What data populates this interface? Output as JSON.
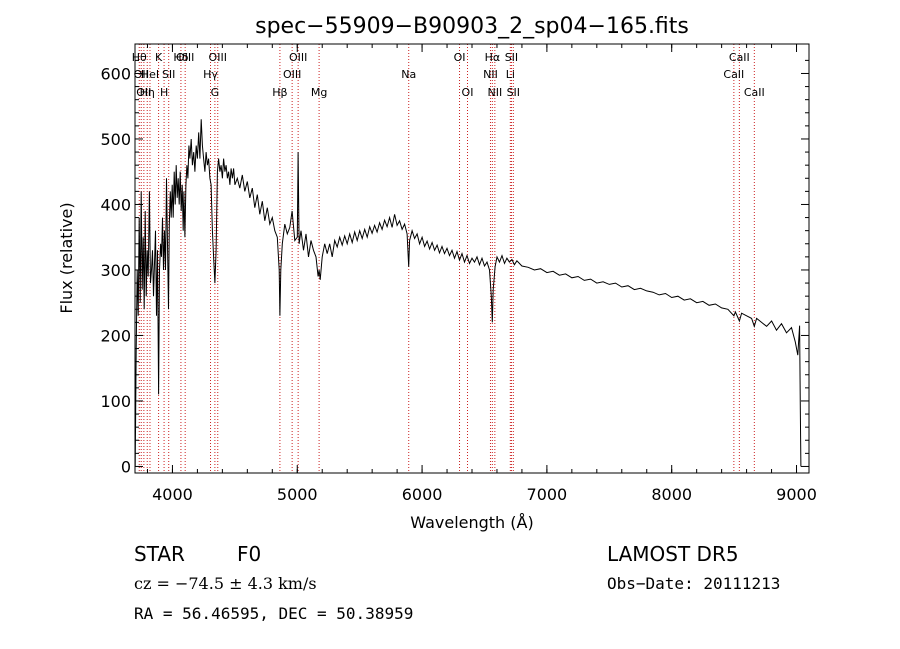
{
  "chart_data": {
    "type": "line",
    "title": "spec−55909−B90903_2_sp04−165.fits",
    "xlabel": "Wavelength (Å)",
    "ylabel": "Flux (relative)",
    "xlim": [
      3700,
      9100
    ],
    "ylim": [
      -10,
      645
    ],
    "xticks": [
      4000,
      5000,
      6000,
      7000,
      8000,
      9000
    ],
    "yticks": [
      0,
      100,
      200,
      300,
      400,
      500,
      600
    ],
    "grid": false,
    "line_color": "#000000",
    "marker_color": "#cc2222",
    "series": [
      {
        "points": [
          [
            3702,
            0
          ],
          [
            3710,
            180
          ],
          [
            3718,
            300
          ],
          [
            3726,
            230
          ],
          [
            3734,
            380
          ],
          [
            3742,
            250
          ],
          [
            3750,
            420
          ],
          [
            3758,
            270
          ],
          [
            3766,
            350
          ],
          [
            3774,
            240
          ],
          [
            3782,
            390
          ],
          [
            3790,
            260
          ],
          [
            3798,
            330
          ],
          [
            3806,
            290
          ],
          [
            3815,
            420
          ],
          [
            3824,
            280
          ],
          [
            3832,
            300
          ],
          [
            3840,
            330
          ],
          [
            3848,
            260
          ],
          [
            3856,
            310
          ],
          [
            3864,
            360
          ],
          [
            3872,
            230
          ],
          [
            3880,
            330
          ],
          [
            3889,
            110
          ],
          [
            3896,
            300
          ],
          [
            3905,
            340
          ],
          [
            3912,
            320
          ],
          [
            3920,
            380
          ],
          [
            3928,
            300
          ],
          [
            3936,
            360
          ],
          [
            3944,
            300
          ],
          [
            3952,
            440
          ],
          [
            3960,
            340
          ],
          [
            3968,
            240
          ],
          [
            3975,
            370
          ],
          [
            3983,
            420
          ],
          [
            3990,
            380
          ],
          [
            3998,
            430
          ],
          [
            4006,
            380
          ],
          [
            4014,
            450
          ],
          [
            4022,
            400
          ],
          [
            4030,
            460
          ],
          [
            4038,
            410
          ],
          [
            4046,
            440
          ],
          [
            4054,
            400
          ],
          [
            4062,
            450
          ],
          [
            4070,
            390
          ],
          [
            4078,
            430
          ],
          [
            4086,
            360
          ],
          [
            4092,
            420
          ],
          [
            4100,
            350
          ],
          [
            4108,
            430
          ],
          [
            4116,
            460
          ],
          [
            4124,
            440
          ],
          [
            4132,
            490
          ],
          [
            4140,
            470
          ],
          [
            4150,
            500
          ],
          [
            4160,
            460
          ],
          [
            4170,
            480
          ],
          [
            4180,
            450
          ],
          [
            4190,
            490
          ],
          [
            4200,
            470
          ],
          [
            4210,
            510
          ],
          [
            4220,
            470
          ],
          [
            4230,
            530
          ],
          [
            4240,
            490
          ],
          [
            4250,
            470
          ],
          [
            4260,
            450
          ],
          [
            4270,
            480
          ],
          [
            4280,
            460
          ],
          [
            4290,
            470
          ],
          [
            4300,
            440
          ],
          [
            4310,
            430
          ],
          [
            4320,
            360
          ],
          [
            4330,
            320
          ],
          [
            4340,
            280
          ],
          [
            4350,
            330
          ],
          [
            4360,
            450
          ],
          [
            4370,
            470
          ],
          [
            4380,
            450
          ],
          [
            4390,
            460
          ],
          [
            4400,
            440
          ],
          [
            4410,
            470
          ],
          [
            4420,
            450
          ],
          [
            4430,
            460
          ],
          [
            4440,
            440
          ],
          [
            4450,
            450
          ],
          [
            4460,
            430
          ],
          [
            4470,
            455
          ],
          [
            4480,
            440
          ],
          [
            4490,
            455
          ],
          [
            4500,
            430
          ],
          [
            4520,
            440
          ],
          [
            4540,
            425
          ],
          [
            4560,
            445
          ],
          [
            4580,
            420
          ],
          [
            4600,
            435
          ],
          [
            4620,
            410
          ],
          [
            4640,
            425
          ],
          [
            4660,
            395
          ],
          [
            4680,
            415
          ],
          [
            4700,
            385
          ],
          [
            4720,
            405
          ],
          [
            4740,
            375
          ],
          [
            4760,
            395
          ],
          [
            4780,
            370
          ],
          [
            4800,
            380
          ],
          [
            4820,
            360
          ],
          [
            4840,
            350
          ],
          [
            4855,
            300
          ],
          [
            4861,
            230
          ],
          [
            4868,
            300
          ],
          [
            4880,
            340
          ],
          [
            4900,
            370
          ],
          [
            4920,
            355
          ],
          [
            4940,
            365
          ],
          [
            4959,
            390
          ],
          [
            4980,
            345
          ],
          [
            5000,
            350
          ],
          [
            5007,
            480
          ],
          [
            5015,
            340
          ],
          [
            5030,
            360
          ],
          [
            5050,
            330
          ],
          [
            5070,
            355
          ],
          [
            5090,
            320
          ],
          [
            5110,
            345
          ],
          [
            5130,
            330
          ],
          [
            5150,
            320
          ],
          [
            5167,
            290
          ],
          [
            5175,
            300
          ],
          [
            5184,
            285
          ],
          [
            5200,
            320
          ],
          [
            5220,
            340
          ],
          [
            5240,
            325
          ],
          [
            5260,
            340
          ],
          [
            5280,
            320
          ],
          [
            5300,
            345
          ],
          [
            5320,
            335
          ],
          [
            5340,
            350
          ],
          [
            5360,
            338
          ],
          [
            5380,
            352
          ],
          [
            5400,
            340
          ],
          [
            5420,
            355
          ],
          [
            5440,
            342
          ],
          [
            5460,
            358
          ],
          [
            5480,
            345
          ],
          [
            5500,
            360
          ],
          [
            5520,
            348
          ],
          [
            5540,
            362
          ],
          [
            5560,
            350
          ],
          [
            5580,
            366
          ],
          [
            5600,
            356
          ],
          [
            5620,
            368
          ],
          [
            5640,
            358
          ],
          [
            5660,
            372
          ],
          [
            5680,
            362
          ],
          [
            5700,
            376
          ],
          [
            5720,
            366
          ],
          [
            5740,
            380
          ],
          [
            5760,
            365
          ],
          [
            5780,
            385
          ],
          [
            5800,
            368
          ],
          [
            5820,
            375
          ],
          [
            5840,
            362
          ],
          [
            5860,
            370
          ],
          [
            5880,
            355
          ],
          [
            5893,
            305
          ],
          [
            5900,
            345
          ],
          [
            5920,
            360
          ],
          [
            5940,
            348
          ],
          [
            5960,
            355
          ],
          [
            5980,
            340
          ],
          [
            6000,
            350
          ],
          [
            6020,
            336
          ],
          [
            6040,
            344
          ],
          [
            6060,
            332
          ],
          [
            6080,
            342
          ],
          [
            6100,
            330
          ],
          [
            6120,
            338
          ],
          [
            6140,
            326
          ],
          [
            6160,
            336
          ],
          [
            6180,
            325
          ],
          [
            6200,
            333
          ],
          [
            6220,
            322
          ],
          [
            6240,
            330
          ],
          [
            6260,
            318
          ],
          [
            6280,
            328
          ],
          [
            6300,
            315
          ],
          [
            6320,
            325
          ],
          [
            6340,
            312
          ],
          [
            6360,
            322
          ],
          [
            6380,
            310
          ],
          [
            6400,
            318
          ],
          [
            6420,
            312
          ],
          [
            6440,
            320
          ],
          [
            6460,
            308
          ],
          [
            6480,
            318
          ],
          [
            6500,
            306
          ],
          [
            6520,
            312
          ],
          [
            6540,
            300
          ],
          [
            6555,
            260
          ],
          [
            6563,
            220
          ],
          [
            6570,
            270
          ],
          [
            6585,
            305
          ],
          [
            6600,
            320
          ],
          [
            6620,
            312
          ],
          [
            6640,
            322
          ],
          [
            6660,
            310
          ],
          [
            6680,
            318
          ],
          [
            6700,
            312
          ],
          [
            6720,
            316
          ],
          [
            6740,
            308
          ],
          [
            6760,
            314
          ],
          [
            6800,
            306
          ],
          [
            6850,
            304
          ],
          [
            6900,
            300
          ],
          [
            6950,
            302
          ],
          [
            7000,
            296
          ],
          [
            7050,
            298
          ],
          [
            7100,
            292
          ],
          [
            7150,
            294
          ],
          [
            7200,
            288
          ],
          [
            7250,
            290
          ],
          [
            7300,
            284
          ],
          [
            7350,
            286
          ],
          [
            7400,
            280
          ],
          [
            7450,
            282
          ],
          [
            7500,
            278
          ],
          [
            7550,
            280
          ],
          [
            7600,
            274
          ],
          [
            7650,
            276
          ],
          [
            7700,
            270
          ],
          [
            7750,
            272
          ],
          [
            7800,
            268
          ],
          [
            7850,
            266
          ],
          [
            7900,
            262
          ],
          [
            7950,
            264
          ],
          [
            8000,
            258
          ],
          [
            8050,
            260
          ],
          [
            8100,
            254
          ],
          [
            8150,
            256
          ],
          [
            8200,
            250
          ],
          [
            8250,
            252
          ],
          [
            8300,
            246
          ],
          [
            8350,
            248
          ],
          [
            8400,
            242
          ],
          [
            8450,
            240
          ],
          [
            8498,
            230
          ],
          [
            8510,
            236
          ],
          [
            8542,
            222
          ],
          [
            8560,
            234
          ],
          [
            8600,
            230
          ],
          [
            8640,
            226
          ],
          [
            8662,
            214
          ],
          [
            8680,
            226
          ],
          [
            8720,
            220
          ],
          [
            8760,
            214
          ],
          [
            8800,
            222
          ],
          [
            8840,
            208
          ],
          [
            8880,
            218
          ],
          [
            8920,
            204
          ],
          [
            8960,
            212
          ],
          [
            8990,
            190
          ],
          [
            9010,
            170
          ],
          [
            9025,
            215
          ],
          [
            9030,
            90
          ],
          [
            9035,
            0
          ]
        ]
      }
    ],
    "lines": [
      {
        "x": 3734,
        "label": "Hθ",
        "row": 1
      },
      {
        "x": 3750,
        "label": "OII",
        "row": 2
      },
      {
        "x": 3771,
        "label": "OII",
        "row": 3
      },
      {
        "x": 3798,
        "label": "Hη",
        "row": 3
      },
      {
        "x": 3820,
        "label": "HeI",
        "row": 2
      },
      {
        "x": 3889,
        "label": "K",
        "row": 1
      },
      {
        "x": 3933,
        "label": "H",
        "row": 3
      },
      {
        "x": 3970,
        "label": "SII",
        "row": 2
      },
      {
        "x": 4068,
        "label": "Hδ",
        "row": 1
      },
      {
        "x": 4102,
        "label": "OIII",
        "row": 1
      },
      {
        "x": 4305,
        "label": "Hγ",
        "row": 2
      },
      {
        "x": 4340,
        "label": "G",
        "row": 3
      },
      {
        "x": 4363,
        "label": "OIII",
        "row": 1
      },
      {
        "x": 4861,
        "label": "Hβ",
        "row": 3
      },
      {
        "x": 4959,
        "label": "OIII",
        "row": 2
      },
      {
        "x": 5007,
        "label": "OIII",
        "row": 1
      },
      {
        "x": 5175,
        "label": "Mg",
        "row": 3
      },
      {
        "x": 5893,
        "label": "Na",
        "row": 2
      },
      {
        "x": 6300,
        "label": "OI",
        "row": 1
      },
      {
        "x": 6364,
        "label": "OI",
        "row": 3
      },
      {
        "x": 6548,
        "label": "NII",
        "row": 2
      },
      {
        "x": 6563,
        "label": "Hα",
        "row": 1
      },
      {
        "x": 6583,
        "label": "NII",
        "row": 3
      },
      {
        "x": 6707,
        "label": "Li",
        "row": 2
      },
      {
        "x": 6716,
        "label": "SII",
        "row": 1
      },
      {
        "x": 6731,
        "label": "SII",
        "row": 3
      },
      {
        "x": 8498,
        "label": "CaII",
        "row": 2
      },
      {
        "x": 8542,
        "label": "CaII",
        "row": 1
      },
      {
        "x": 8662,
        "label": "CaII",
        "row": 3
      }
    ]
  },
  "info": {
    "object_class": "STAR",
    "subclass": "F0",
    "survey": "LAMOST DR5",
    "cz": "cz = −74.5 ± 4.3 km/s",
    "obs_date": "Obs−Date: 20111213",
    "coords": "RA =  56.46595, DEC =  50.38959"
  }
}
